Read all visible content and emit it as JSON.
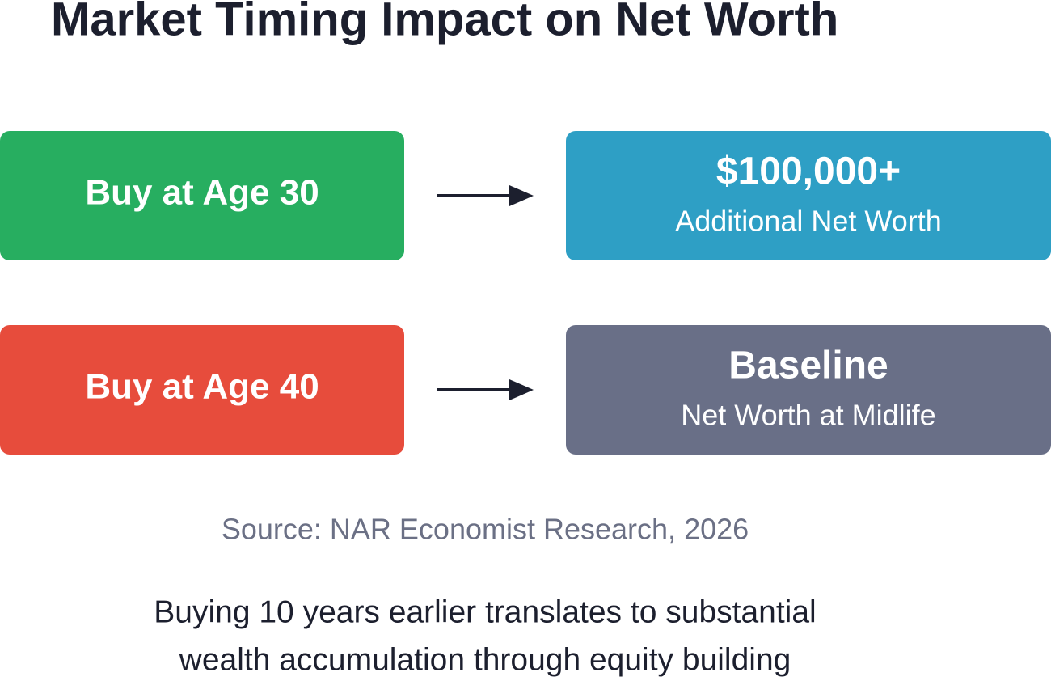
{
  "header": {
    "title": "Market Timing Impact on Net Worth"
  },
  "rows": [
    {
      "label": "Buy at Age 30",
      "result": "$100,000+",
      "result_sub": "Additional Net Worth"
    },
    {
      "label": "Buy at Age 40",
      "result": "Baseline",
      "result_sub": "Net Worth at Midlife"
    }
  ],
  "source": "Source: NAR Economist Research, 2026",
  "footer": {
    "lines": [
      "Buying 10 years earlier translates to substantial",
      "wealth accumulation through equity building"
    ]
  }
}
